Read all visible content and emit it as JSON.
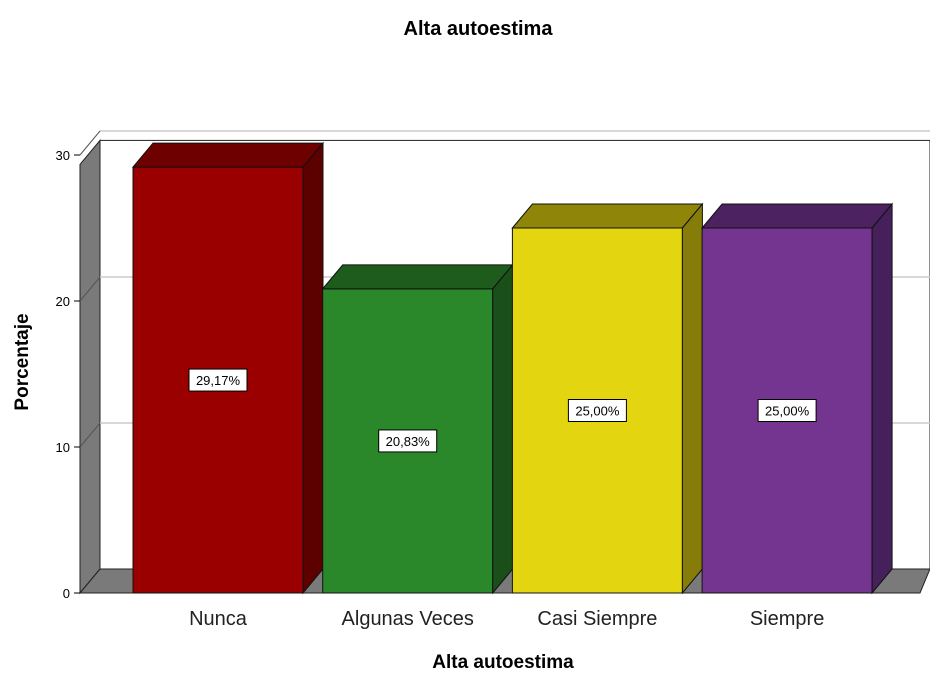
{
  "chart_data": {
    "type": "bar",
    "style": "3d",
    "title": "Alta autoestima",
    "xlabel": "Alta autoestima",
    "ylabel": "Porcentaje",
    "categories": [
      "Nunca",
      "Algunas Veces",
      "Casi Siempre",
      "Siempre"
    ],
    "values": [
      29.17,
      20.83,
      25.0,
      25.0
    ],
    "data_labels": [
      "29,17%",
      "20,83%",
      "25,00%",
      "25,00%"
    ],
    "ylim": [
      0,
      31
    ],
    "yticks": [
      0,
      10,
      20,
      30
    ],
    "grid": true,
    "legend": "none",
    "colors": {
      "bars": [
        {
          "front": "#9b0000",
          "top": "#6e0000",
          "side": "#5c0000"
        },
        {
          "front": "#2a882a",
          "top": "#1e5c1e",
          "side": "#1a4f1a"
        },
        {
          "front": "#e4d511",
          "top": "#8f8509",
          "side": "#857c0a"
        },
        {
          "front": "#743590",
          "top": "#4c2360",
          "side": "#45205a"
        }
      ],
      "wall": "#7a7a7a",
      "grid": "#cccccc"
    }
  }
}
